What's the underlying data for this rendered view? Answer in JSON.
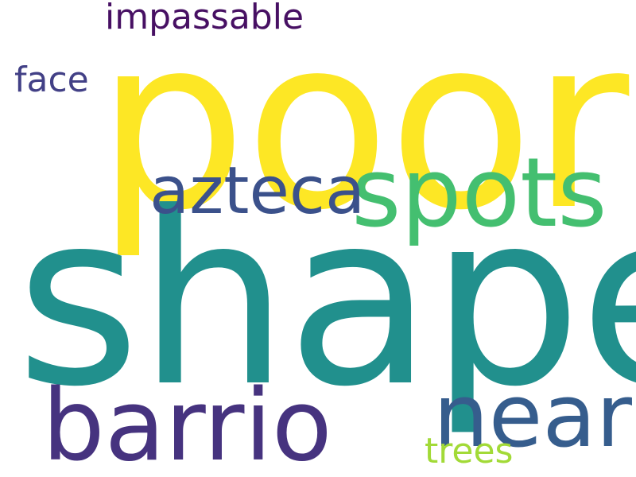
{
  "words": [
    {
      "id": "poor",
      "text": "poor",
      "color": "#fde725"
    },
    {
      "id": "shape",
      "text": "shape",
      "color": "#21908d"
    },
    {
      "id": "spots",
      "text": "spots",
      "color": "#44bf70"
    },
    {
      "id": "azteca",
      "text": "azteca",
      "color": "#3b518b"
    },
    {
      "id": "barrio",
      "text": "barrio",
      "color": "#46337f"
    },
    {
      "id": "near",
      "text": "near",
      "color": "#365d8d"
    },
    {
      "id": "impassable",
      "text": "impassable",
      "color": "#471063"
    },
    {
      "id": "face",
      "text": "face",
      "color": "#424086"
    },
    {
      "id": "trees",
      "text": "trees",
      "color": "#a2da37"
    }
  ]
}
